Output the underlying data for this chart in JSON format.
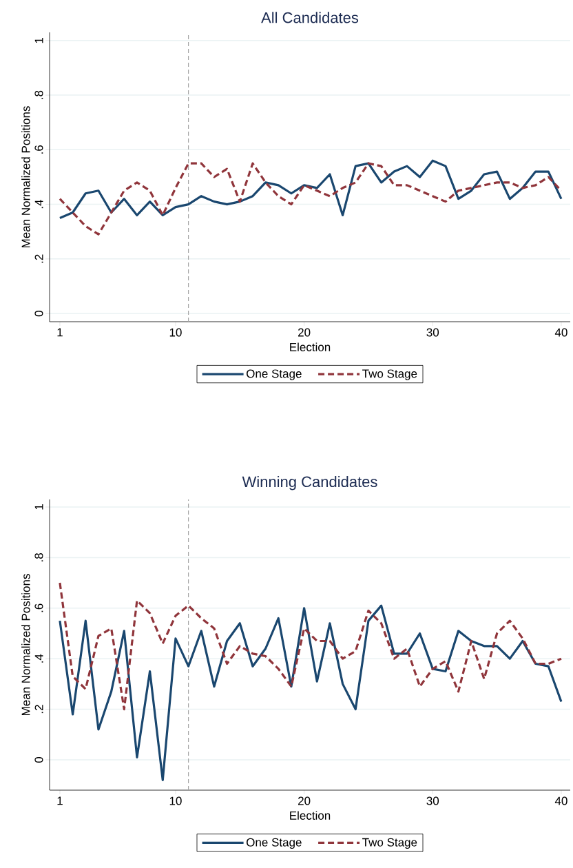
{
  "chart_data": [
    {
      "type": "line",
      "title": "All Candidates",
      "xlabel": "Election",
      "ylabel": "Mean Normalized Positions",
      "xlim": [
        0.2,
        40.7
      ],
      "ylim": [
        -0.03,
        1.03
      ],
      "xticks": [
        1,
        10,
        20,
        30,
        40
      ],
      "yticks": [
        0,
        {
          "value": 0.2,
          "label": ".2"
        },
        {
          "value": 0.4,
          "label": ".4"
        },
        {
          "value": 0.6,
          "label": ".6"
        },
        {
          "value": 0.8,
          "label": ".8"
        },
        1
      ],
      "grid": "y",
      "legend": "bottom",
      "ref_lines": [
        {
          "axis": "x",
          "value": 11,
          "color": "#a6a6a6",
          "line_style": "dashed"
        }
      ],
      "x": [
        1,
        2,
        3,
        4,
        5,
        6,
        7,
        8,
        9,
        10,
        11,
        12,
        13,
        14,
        15,
        16,
        17,
        18,
        19,
        20,
        21,
        22,
        23,
        24,
        25,
        26,
        27,
        28,
        29,
        30,
        31,
        32,
        33,
        34,
        35,
        36,
        37,
        38,
        39,
        40
      ],
      "series": [
        {
          "name": "One Stage",
          "color": "#1a476f",
          "line_style": "solid",
          "values": [
            0.35,
            0.37,
            0.44,
            0.45,
            0.37,
            0.42,
            0.36,
            0.41,
            0.36,
            0.39,
            0.4,
            0.43,
            0.41,
            0.4,
            0.41,
            0.43,
            0.48,
            0.47,
            0.44,
            0.47,
            0.46,
            0.51,
            0.36,
            0.54,
            0.55,
            0.48,
            0.52,
            0.54,
            0.5,
            0.56,
            0.54,
            0.42,
            0.45,
            0.51,
            0.52,
            0.42,
            0.46,
            0.52,
            0.52,
            0.42
          ]
        },
        {
          "name": "Two Stage",
          "color": "#90353b",
          "line_style": "dashed",
          "values": [
            0.42,
            0.37,
            0.32,
            0.29,
            0.37,
            0.45,
            0.48,
            0.45,
            0.36,
            0.46,
            0.55,
            0.55,
            0.5,
            0.53,
            0.41,
            0.55,
            0.48,
            0.43,
            0.4,
            0.47,
            0.45,
            0.43,
            0.46,
            0.48,
            0.55,
            0.54,
            0.47,
            0.47,
            0.45,
            0.43,
            0.41,
            0.45,
            0.46,
            0.47,
            0.48,
            0.48,
            0.46,
            0.47,
            0.5,
            0.45
          ]
        }
      ]
    },
    {
      "type": "line",
      "title": "Winning Candidates",
      "xlabel": "Election",
      "ylabel": "Mean Normalized Positions",
      "xlim": [
        0.2,
        40.7
      ],
      "ylim": [
        -0.12,
        1.03
      ],
      "xticks": [
        1,
        10,
        20,
        30,
        40
      ],
      "yticks": [
        0,
        {
          "value": 0.2,
          "label": ".2"
        },
        {
          "value": 0.4,
          "label": ".4"
        },
        {
          "value": 0.6,
          "label": ".6"
        },
        {
          "value": 0.8,
          "label": ".8"
        },
        1
      ],
      "grid": "y",
      "legend": "bottom",
      "ref_lines": [
        {
          "axis": "x",
          "value": 11,
          "color": "#a6a6a6",
          "line_style": "dashed"
        }
      ],
      "x": [
        1,
        2,
        3,
        4,
        5,
        6,
        7,
        8,
        9,
        10,
        11,
        12,
        13,
        14,
        15,
        16,
        17,
        18,
        19,
        20,
        21,
        22,
        23,
        24,
        25,
        26,
        27,
        28,
        29,
        30,
        31,
        32,
        33,
        34,
        35,
        36,
        37,
        38,
        39,
        40
      ],
      "series": [
        {
          "name": "One Stage",
          "color": "#1a476f",
          "line_style": "solid",
          "values": [
            0.55,
            0.18,
            0.55,
            0.12,
            0.27,
            0.51,
            0.01,
            0.35,
            -0.08,
            0.48,
            0.37,
            0.51,
            0.29,
            0.47,
            0.54,
            0.37,
            0.44,
            0.56,
            0.29,
            0.6,
            0.31,
            0.54,
            0.3,
            0.2,
            0.55,
            0.61,
            0.42,
            0.42,
            0.5,
            0.36,
            0.35,
            0.51,
            0.47,
            0.45,
            0.45,
            0.4,
            0.47,
            0.38,
            0.37,
            0.23
          ]
        },
        {
          "name": "Two Stage",
          "color": "#90353b",
          "line_style": "dashed",
          "values": [
            0.7,
            0.33,
            0.28,
            0.49,
            0.52,
            0.2,
            0.63,
            0.58,
            0.46,
            0.57,
            0.61,
            0.56,
            0.52,
            0.38,
            0.45,
            0.42,
            0.41,
            0.36,
            0.29,
            0.52,
            0.47,
            0.47,
            0.4,
            0.43,
            0.59,
            0.54,
            0.4,
            0.44,
            0.29,
            0.36,
            0.39,
            0.27,
            0.47,
            0.32,
            0.5,
            0.55,
            0.48,
            0.38,
            0.38,
            0.4
          ]
        }
      ]
    }
  ]
}
